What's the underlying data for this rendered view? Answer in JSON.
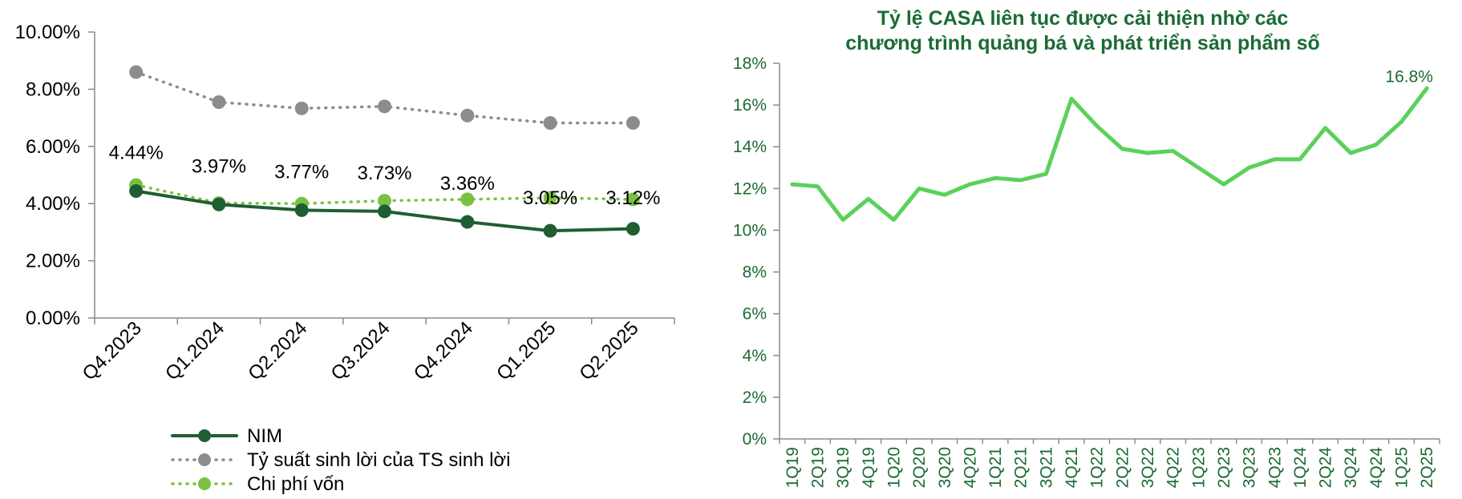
{
  "chart_data": [
    {
      "type": "line",
      "title": "",
      "xlabel": "",
      "ylabel": "",
      "categories": [
        "Q4.2023",
        "Q1.2024",
        "Q2.2024",
        "Q3.2024",
        "Q4.2024",
        "Q1.2025",
        "Q2.2025"
      ],
      "ylim": [
        0,
        10
      ],
      "yticks": [
        "0.00%",
        "2.00%",
        "4.00%",
        "6.00%",
        "8.00%",
        "10.00%"
      ],
      "series": [
        {
          "name": "NIM",
          "values": [
            4.44,
            3.97,
            3.77,
            3.73,
            3.36,
            3.05,
            3.12
          ],
          "labels": [
            "4.44%",
            "3.97%",
            "3.77%",
            "3.73%",
            "3.36%",
            "3.05%",
            "3.12%"
          ],
          "color": "#1f5e32",
          "style": "solid"
        },
        {
          "name": "Tỷ suất sinh lời của TS sinh lời",
          "values": [
            8.6,
            7.55,
            7.33,
            7.4,
            7.08,
            6.82,
            6.82
          ],
          "color": "#8c8c8c",
          "style": "dotted"
        },
        {
          "name": "Chi phí vốn",
          "values": [
            4.65,
            4.02,
            4.0,
            4.1,
            4.15,
            4.2,
            4.15
          ],
          "color": "#7ac143",
          "style": "dotted"
        }
      ],
      "legend_position": "bottom-left",
      "grid": false
    },
    {
      "type": "line",
      "title": "Tỷ lệ CASA liên tục được cải thiện nhờ các chương trình quảng bá và phát triển sản phẩm số",
      "title_lines": [
        "Tỷ lệ CASA liên tục được cải thiện nhờ các",
        "chương trình quảng bá và phát triển sản phẩm số"
      ],
      "xlabel": "",
      "ylabel": "",
      "x": [
        "1Q19",
        "2Q19",
        "3Q19",
        "4Q19",
        "1Q20",
        "2Q20",
        "3Q20",
        "4Q20",
        "1Q21",
        "2Q21",
        "3Q21",
        "4Q21",
        "1Q22",
        "2Q22",
        "3Q22",
        "4Q22",
        "1Q23",
        "2Q23",
        "3Q23",
        "4Q23",
        "1Q24",
        "2Q24",
        "3Q24",
        "4Q24",
        "1Q25",
        "2Q25"
      ],
      "ylim": [
        0,
        18
      ],
      "yticks": [
        "0%",
        "2%",
        "4%",
        "6%",
        "8%",
        "10%",
        "12%",
        "14%",
        "16%",
        "18%"
      ],
      "series": [
        {
          "values": [
            12.2,
            12.1,
            10.5,
            11.5,
            10.5,
            12.0,
            11.7,
            12.2,
            12.5,
            12.4,
            12.7,
            16.3,
            15.0,
            13.9,
            13.7,
            13.8,
            13.0,
            12.2,
            13.0,
            13.4,
            13.4,
            14.9,
            13.7,
            14.1,
            15.2,
            16.8
          ],
          "color": "#5bd15b"
        }
      ],
      "annotation": "16.8%",
      "grid": false
    }
  ]
}
